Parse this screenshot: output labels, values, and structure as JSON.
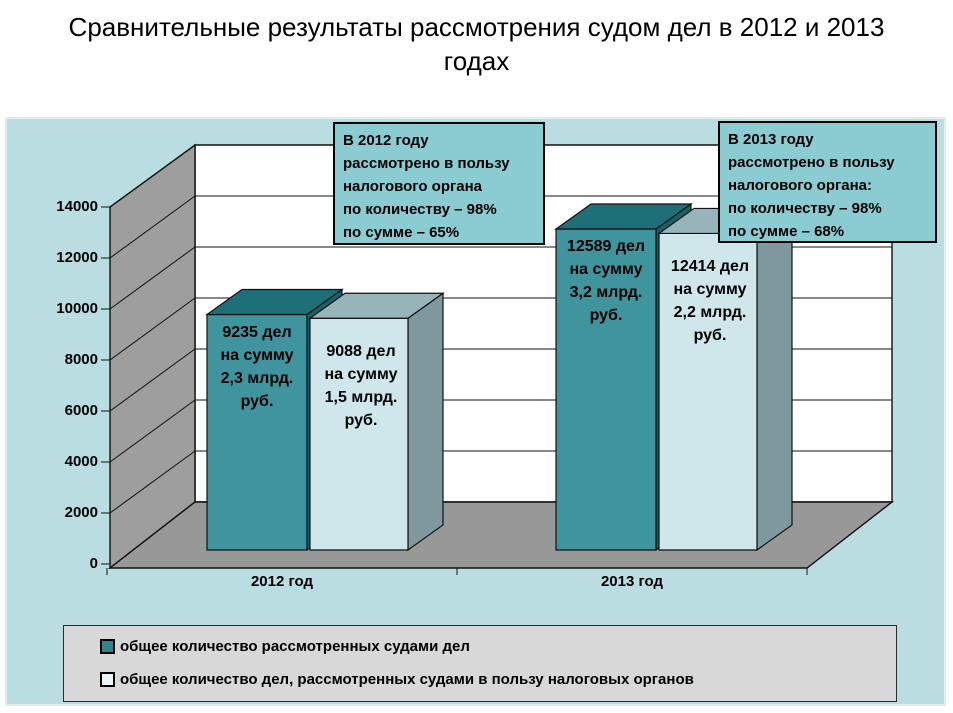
{
  "title": {
    "line1": "Сравнительные результаты рассмотрения судом дел в 2012 и 2013",
    "line2": "годах"
  },
  "colors": {
    "chart_background": "#badde1",
    "callout_background": "#8accd2",
    "legend_background": "#d8d8d8",
    "wall_back": "#ffffff",
    "wall_side": "#9e9e9e",
    "floor": "#989898",
    "outline": "#111111"
  },
  "chart_data": {
    "type": "bar",
    "title": "Сравнительные результаты рассмотрения судом дел в 2012 и 2013 годах",
    "style": "3d-column",
    "categories": [
      "2012 год",
      "2013 год"
    ],
    "series": [
      {
        "name": "общее количество рассмотренных судами дел",
        "values": [
          9235,
          12589
        ],
        "bar_labels": [
          [
            "9235 дел",
            "на сумму",
            "2,3 млрд.",
            "руб."
          ],
          [
            "12589 дел",
            "на сумму",
            "3,2 млрд.",
            "руб."
          ]
        ],
        "color_front": "#3f949e",
        "color_top": "#1e7078",
        "color_side": "#16616a",
        "legend_swatch": "#2f858f"
      },
      {
        "name": "общее количество дел, рассмотренных судами в пользу налоговых органов",
        "values": [
          9088,
          12414
        ],
        "bar_labels": [
          [
            "9088 дел",
            "на сумму",
            "1,5 млрд.",
            "руб."
          ],
          [
            "12414 дел",
            "на сумму",
            "2,2 млрд.",
            "руб."
          ]
        ],
        "color_front": "#cfe7ea",
        "color_top": "#96b4ba",
        "color_side": "#7e989e",
        "legend_swatch": "#eef7f8"
      }
    ],
    "ylim": [
      0,
      14000
    ],
    "yticks": [
      0,
      2000,
      4000,
      6000,
      8000,
      10000,
      12000,
      14000
    ],
    "grid": true,
    "legend_position": "bottom",
    "annotations": [
      {
        "target": "2012",
        "lines": [
          "В 2012 году",
          "рассмотрено в пользу",
          "налогового органа",
          "по количеству – 98%",
          "по сумме – 65%"
        ]
      },
      {
        "target": "2013",
        "lines": [
          "В 2013 году",
          "рассмотрено в пользу",
          "налогового органа:",
          "по количеству – 98%",
          "по сумме – 68%"
        ]
      }
    ]
  }
}
